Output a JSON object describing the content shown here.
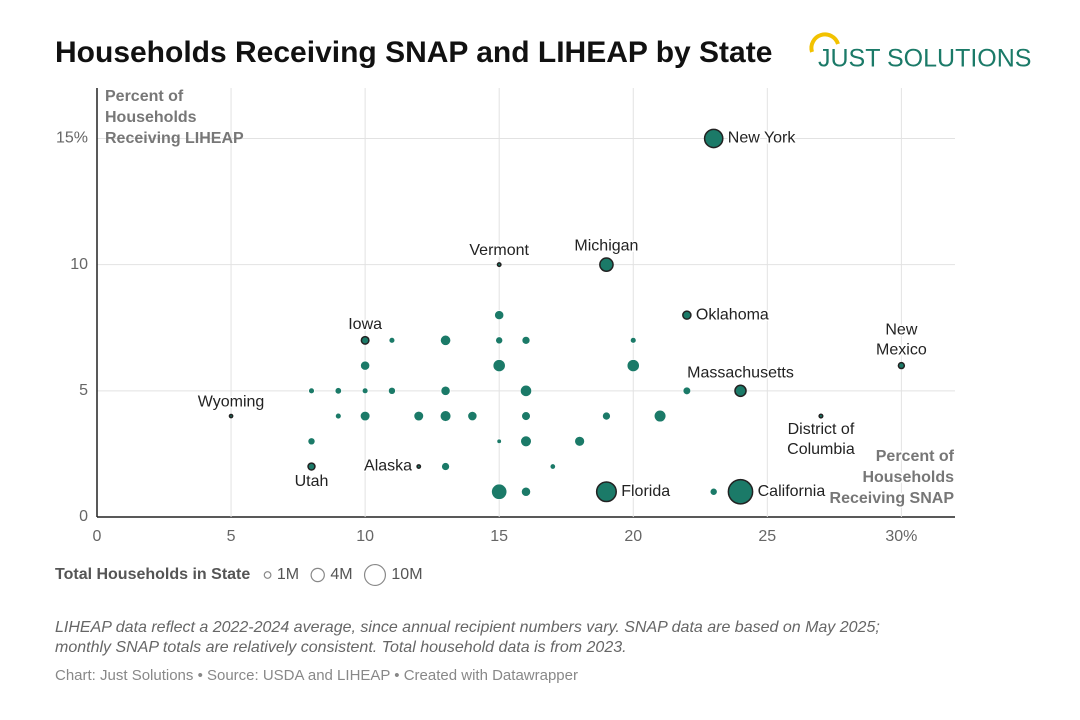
{
  "chart_data": {
    "type": "scatter",
    "title": "Households Receiving SNAP and LIHEAP by State",
    "logo": "JUST SOLUTIONS",
    "y_label": "Percent of Households Receiving LIHEAP",
    "x_label": "Percent of Households Receiving SNAP",
    "x": [
      23,
      19,
      15,
      22,
      10,
      30,
      24,
      5,
      27,
      12,
      8,
      19,
      24,
      15,
      11,
      13,
      15,
      16,
      20,
      10,
      15,
      20,
      8,
      9,
      10,
      11,
      13,
      16,
      22,
      9,
      10,
      12,
      13,
      14,
      16,
      19,
      21,
      8,
      15,
      16,
      18,
      13,
      17,
      15,
      16,
      23
    ],
    "values": [
      15,
      10,
      10,
      8,
      7,
      6,
      5,
      4,
      4,
      2,
      2,
      1,
      1,
      8,
      7,
      7,
      7,
      7,
      7,
      6,
      6,
      6,
      5,
      5,
      5,
      5,
      5,
      5,
      5,
      4,
      4,
      4,
      4,
      4,
      4,
      4,
      4,
      3,
      3,
      3,
      3,
      2,
      2,
      1,
      1,
      1
    ],
    "sizes": [
      7.6,
      4,
      0.27,
      1.5,
      1.3,
      0.8,
      2.8,
      0.24,
      0.3,
      0.26,
      1.1,
      8.8,
      13.5,
      2,
      0.8,
      2.5,
      1.2,
      1.5,
      0.8,
      2,
      3.5,
      3.5,
      0.8,
      1,
      0.8,
      1.2,
      2,
      3,
      1.4,
      0.8,
      2.2,
      2.2,
      2.7,
      2,
      1.8,
      1.5,
      3.2,
      1.2,
      0.5,
      2.7,
      2.3,
      1.5,
      0.7,
      5.5,
      2,
      1.2
    ],
    "labels": [
      "New York",
      "Michigan",
      "Vermont",
      "Oklahoma",
      "Iowa",
      "New Mexico",
      "Massachusetts",
      "Wyoming",
      "District of Columbia",
      "Alaska",
      "Utah",
      "Florida",
      "California",
      null,
      null,
      null,
      null,
      null,
      null,
      null,
      null,
      null,
      null,
      null,
      null,
      null,
      null,
      null,
      null,
      null,
      null,
      null,
      null,
      null,
      null,
      null,
      null,
      null,
      null,
      null,
      null,
      null,
      null,
      null,
      null,
      null
    ],
    "color": "#1b7a68",
    "xlim": [
      0,
      32
    ],
    "ylim": [
      0,
      17
    ],
    "xticks": [
      0,
      5,
      10,
      15,
      20,
      25,
      {
        "value": 30,
        "label": "30%"
      }
    ],
    "yticks": [
      0,
      5,
      10,
      {
        "value": 15,
        "label": "15%"
      }
    ],
    "grid": true,
    "size_legend": {
      "title": "Total Households in State",
      "items": [
        {
          "value": 1,
          "label": "1M"
        },
        {
          "value": 4,
          "label": "4M"
        },
        {
          "value": 10,
          "label": "10M"
        }
      ]
    },
    "notes": [
      "LIHEAP data reflect a 2022-2024 average, since annual recipient numbers vary. SNAP data are based on May 2025;",
      "monthly SNAP totals are relatively consistent. Total household data is from 2023."
    ],
    "source": "Chart: Just Solutions • Source: USDA and LIHEAP • Created with Datawrapper"
  }
}
